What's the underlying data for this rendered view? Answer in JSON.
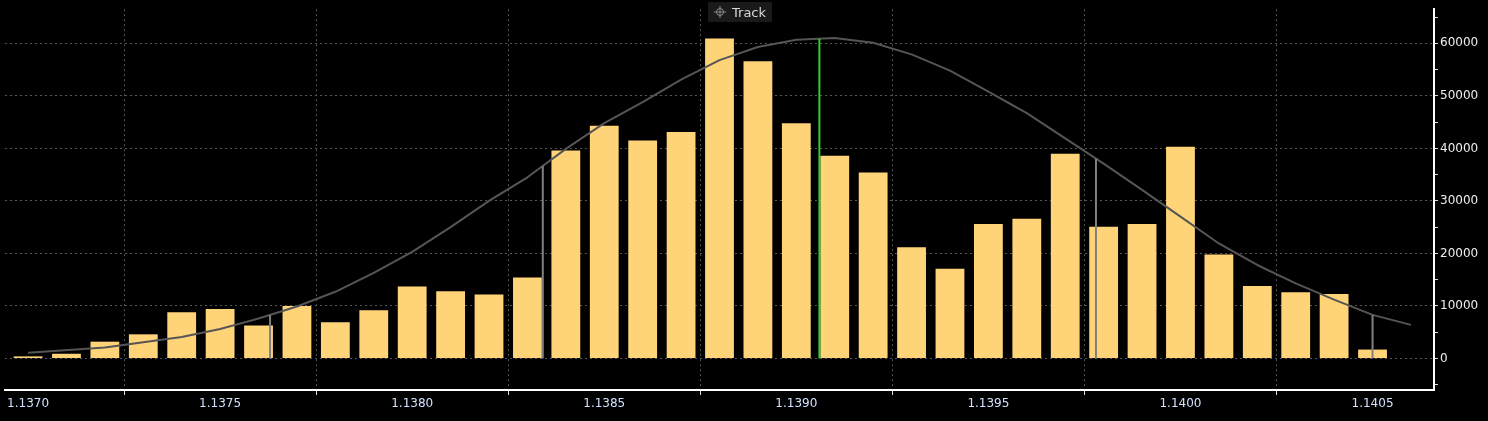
{
  "chart_data": {
    "type": "bar",
    "annotations": [
      "Track"
    ],
    "x": [
      1.137,
      1.1371,
      1.1372,
      1.1373,
      1.1374,
      1.1375,
      1.1376,
      1.1377,
      1.1378,
      1.1379,
      1.138,
      1.1381,
      1.1382,
      1.1383,
      1.1384,
      1.1385,
      1.1386,
      1.1387,
      1.1388,
      1.1389,
      1.139,
      1.1391,
      1.1392,
      1.1393,
      1.1394,
      1.1395,
      1.1396,
      1.1397,
      1.1398,
      1.1399,
      1.14,
      1.1401,
      1.1402,
      1.1403,
      1.1404,
      1.1405,
      1.1406
    ],
    "series": [
      {
        "color": "#ffd479",
        "values": [
          400,
          900,
          3200,
          4600,
          8800,
          9400,
          6300,
          10000,
          6900,
          9200,
          13700,
          12800,
          12200,
          15400,
          39600,
          44300,
          41500,
          43100,
          60900,
          56600,
          44800,
          38600,
          35400,
          21200,
          17100,
          25600,
          26600,
          39000,
          25100,
          25600,
          40300,
          19800,
          13800,
          12600,
          12300,
          1700,
          0
        ]
      },
      {
        "type": "line",
        "color": "#555555",
        "x": [
          1.137,
          1.1372,
          1.1374,
          1.1375,
          1.1376,
          1.1377,
          1.1378,
          1.1379,
          1.138,
          1.1381,
          1.1382,
          1.1383,
          1.1384,
          1.1385,
          1.1386,
          1.1387,
          1.1388,
          1.1389,
          1.139,
          1.1391,
          1.1392,
          1.1393,
          1.1394,
          1.1395,
          1.1396,
          1.1397,
          1.1398,
          1.1399,
          1.14,
          1.1401,
          1.1402,
          1.1403,
          1.1404,
          1.1405,
          1.1406
        ],
        "values": [
          1100,
          2100,
          4100,
          5600,
          7600,
          9900,
          12700,
          16300,
          20300,
          25000,
          30000,
          34500,
          39900,
          44800,
          48800,
          53100,
          56800,
          59300,
          60700,
          61000,
          60100,
          57900,
          54800,
          50800,
          46700,
          41900,
          37100,
          32100,
          27000,
          21900,
          17800,
          14300,
          11200,
          8300,
          6400
        ]
      }
    ],
    "ref_lines": [
      {
        "axis": "x",
        "value": 1.13763,
        "color": "#808080"
      },
      {
        "axis": "x",
        "value": 1.13834,
        "color": "#808080"
      },
      {
        "axis": "x",
        "value": 1.13906,
        "color": "#33cc33"
      },
      {
        "axis": "x",
        "value": 1.13978,
        "color": "#808080"
      },
      {
        "axis": "x",
        "value": 1.1405,
        "color": "#808080"
      }
    ],
    "xlim": [
      1.13694,
      1.14066
    ],
    "xticks": [
      {
        "value": 1.137,
        "label": "1.1370"
      },
      {
        "value": 1.1375,
        "label": "1.1375"
      },
      {
        "value": 1.138,
        "label": "1.1380"
      },
      {
        "value": 1.1385,
        "label": "1.1385"
      },
      {
        "value": 1.139,
        "label": "1.1390"
      },
      {
        "value": 1.1395,
        "label": "1.1395"
      },
      {
        "value": 1.14,
        "label": "1.1400"
      },
      {
        "value": 1.1405,
        "label": "1.1405"
      }
    ],
    "ylim": [
      -6000,
      66500
    ],
    "yticks": [
      {
        "value": -5000,
        "label": null
      },
      0,
      {
        "value": 5000,
        "label": null
      },
      10000,
      {
        "value": 15000,
        "label": null
      },
      20000,
      {
        "value": 25000,
        "label": null
      },
      30000,
      {
        "value": 35000,
        "label": null
      },
      40000,
      {
        "value": 45000,
        "label": null
      },
      50000,
      {
        "value": 55000,
        "label": null
      },
      60000,
      {
        "value": 65000,
        "label": null
      }
    ],
    "grid": true,
    "legend": false,
    "marker": "none",
    "line_style": "solid"
  }
}
